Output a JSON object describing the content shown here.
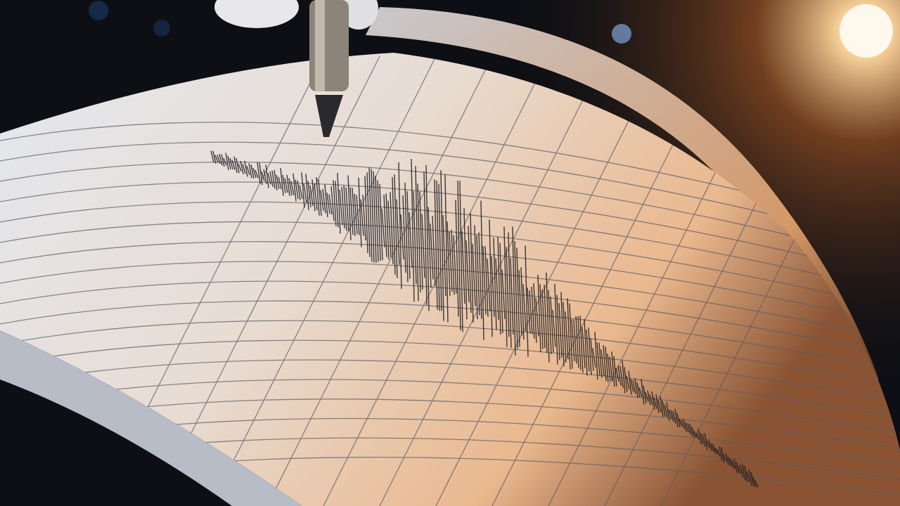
{
  "scene": {
    "subject": "seismograph",
    "colors": {
      "background": "#0d0f14",
      "paper_cool": "#dfe3ea",
      "paper_warm": "#f3c9a0",
      "light": "#fff3d6",
      "trace": "#1c1c20",
      "grid": "#5a5c66"
    },
    "icons": [
      "pen-icon",
      "light-flare-icon"
    ]
  }
}
